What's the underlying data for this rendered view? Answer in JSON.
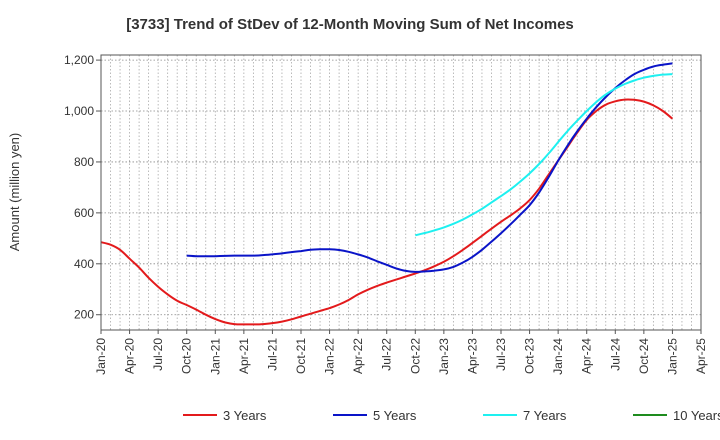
{
  "chart_data": {
    "type": "line",
    "title": "[3733]  Trend of StDev of 12-Month Moving Sum of Net Incomes",
    "ylabel": "Amount (million yen)",
    "xlabel": "",
    "ylim": [
      140,
      1220
    ],
    "yticks": [
      200,
      400,
      600,
      800,
      "1,000",
      "1,200"
    ],
    "ytick_values": [
      200,
      400,
      600,
      800,
      1000,
      1200
    ],
    "xticks": [
      "Jan-20",
      "Apr-20",
      "Jul-20",
      "Oct-20",
      "Jan-21",
      "Apr-21",
      "Jul-21",
      "Oct-21",
      "Jan-22",
      "Apr-22",
      "Jul-22",
      "Oct-22",
      "Jan-23",
      "Apr-23",
      "Jul-23",
      "Oct-23",
      "Jan-24",
      "Apr-24",
      "Jul-24",
      "Oct-24",
      "Jan-25",
      "Apr-25"
    ],
    "grid": true,
    "legend_position": "bottom",
    "series": [
      {
        "name": "3 Years",
        "color": "#e31a1c",
        "x": [
          "Jan-20",
          "Feb-20",
          "Mar-20",
          "Apr-20",
          "May-20",
          "Jun-20",
          "Jul-20",
          "Aug-20",
          "Sep-20",
          "Oct-20",
          "Nov-20",
          "Dec-20",
          "Jan-21",
          "Feb-21",
          "Mar-21",
          "Apr-21",
          "May-21",
          "Jun-21",
          "Jul-21",
          "Aug-21",
          "Sep-21",
          "Oct-21",
          "Nov-21",
          "Dec-21",
          "Jan-22",
          "Feb-22",
          "Mar-22",
          "Apr-22",
          "May-22",
          "Jun-22",
          "Jul-22",
          "Aug-22",
          "Sep-22",
          "Oct-22",
          "Nov-22",
          "Dec-22",
          "Jan-23",
          "Feb-23",
          "Mar-23",
          "Apr-23",
          "May-23",
          "Jun-23",
          "Jul-23",
          "Aug-23",
          "Sep-23",
          "Oct-23",
          "Nov-23",
          "Dec-23",
          "Jan-24",
          "Feb-24",
          "Mar-24",
          "Apr-24",
          "May-24",
          "Jun-24",
          "Jul-24",
          "Aug-24",
          "Sep-24",
          "Oct-24",
          "Nov-24",
          "Dec-24",
          "Jan-25"
        ],
        "values": [
          485,
          475,
          455,
          420,
          385,
          345,
          310,
          280,
          255,
          238,
          220,
          200,
          183,
          170,
          163,
          162,
          162,
          163,
          167,
          173,
          182,
          193,
          204,
          215,
          226,
          240,
          258,
          280,
          298,
          313,
          326,
          338,
          350,
          362,
          375,
          390,
          408,
          430,
          455,
          482,
          510,
          538,
          565,
          590,
          617,
          650,
          695,
          750,
          805,
          860,
          915,
          965,
          1000,
          1025,
          1038,
          1045,
          1044,
          1037,
          1022,
          1000,
          970
        ]
      },
      {
        "name": "5 Years",
        "color": "#0a14c8",
        "x": [
          "Oct-20",
          "Nov-20",
          "Dec-20",
          "Jan-21",
          "Feb-21",
          "Mar-21",
          "Apr-21",
          "May-21",
          "Jun-21",
          "Jul-21",
          "Aug-21",
          "Sep-21",
          "Oct-21",
          "Nov-21",
          "Dec-21",
          "Jan-22",
          "Feb-22",
          "Mar-22",
          "Apr-22",
          "May-22",
          "Jun-22",
          "Jul-22",
          "Aug-22",
          "Sep-22",
          "Oct-22",
          "Nov-22",
          "Dec-22",
          "Jan-23",
          "Feb-23",
          "Mar-23",
          "Apr-23",
          "May-23",
          "Jun-23",
          "Jul-23",
          "Aug-23",
          "Sep-23",
          "Oct-23",
          "Nov-23",
          "Dec-23",
          "Jan-24",
          "Feb-24",
          "Mar-24",
          "Apr-24",
          "May-24",
          "Jun-24",
          "Jul-24",
          "Aug-24",
          "Sep-24",
          "Oct-24",
          "Nov-24",
          "Dec-24",
          "Jan-25"
        ],
        "values": [
          432,
          430,
          430,
          430,
          431,
          432,
          432,
          432,
          434,
          437,
          441,
          446,
          450,
          455,
          457,
          457,
          454,
          447,
          437,
          425,
          410,
          396,
          382,
          372,
          368,
          370,
          373,
          378,
          388,
          405,
          427,
          455,
          487,
          520,
          555,
          592,
          630,
          680,
          740,
          805,
          865,
          920,
          970,
          1015,
          1055,
          1090,
          1120,
          1145,
          1162,
          1175,
          1182,
          1187
        ]
      },
      {
        "name": "7 Years",
        "color": "#1ef0f0",
        "x": [
          "Oct-22",
          "Nov-22",
          "Dec-22",
          "Jan-23",
          "Feb-23",
          "Mar-23",
          "Apr-23",
          "May-23",
          "Jun-23",
          "Jul-23",
          "Aug-23",
          "Sep-23",
          "Oct-23",
          "Nov-23",
          "Dec-23",
          "Jan-24",
          "Feb-24",
          "Mar-24",
          "Apr-24",
          "May-24",
          "Jun-24",
          "Jul-24",
          "Aug-24",
          "Sep-24",
          "Oct-24",
          "Nov-24",
          "Dec-24",
          "Jan-25"
        ],
        "values": [
          512,
          521,
          531,
          543,
          557,
          574,
          594,
          616,
          641,
          666,
          692,
          722,
          755,
          792,
          833,
          878,
          922,
          962,
          1000,
          1035,
          1065,
          1088,
          1106,
          1120,
          1131,
          1138,
          1143,
          1145
        ]
      },
      {
        "name": "10 Years",
        "color": "#1e8c1e",
        "x": [],
        "values": []
      }
    ]
  }
}
